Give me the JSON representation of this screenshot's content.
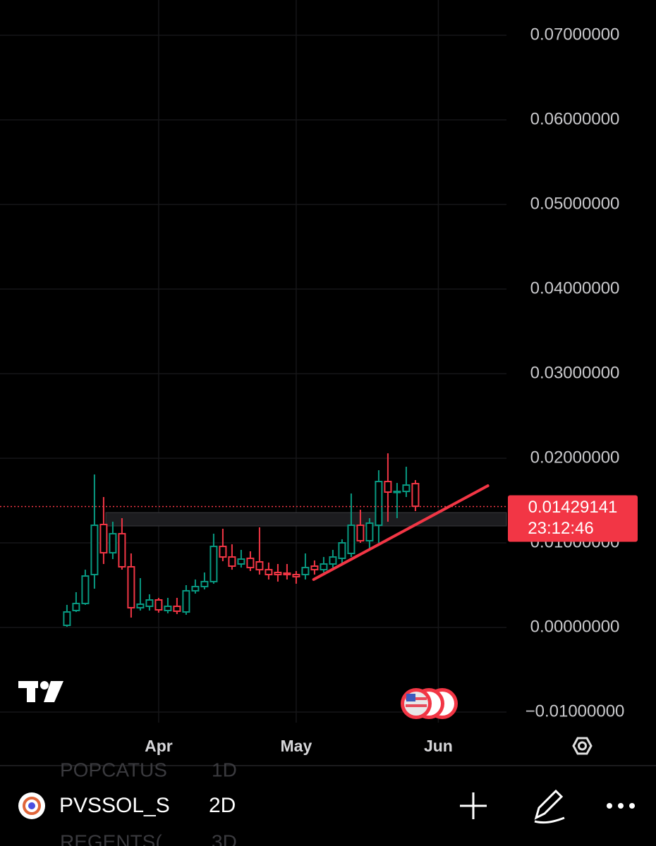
{
  "chart_data": {
    "type": "candlestick",
    "up_color": "#089981",
    "down_color": "#f23645",
    "open": [
      0.00025,
      0.002,
      0.00283,
      0.00625,
      0.01217,
      0.00883,
      0.01108,
      0.00717,
      0.00233,
      0.0025,
      0.00325,
      0.002,
      0.0025,
      0.00183,
      0.00433,
      0.00483,
      0.00542,
      0.00958,
      0.00833,
      0.0075,
      0.00817,
      0.00775,
      0.00683,
      0.0065,
      0.00642,
      0.00625,
      0.00625,
      0.00725,
      0.00683,
      0.0075,
      0.00817,
      0.00875,
      0.01208,
      0.01025,
      0.01208,
      0.01725,
      0.016,
      0.01608,
      0.017
    ],
    "high": [
      0.00267,
      0.00417,
      0.00683,
      0.01808,
      0.01542,
      0.0125,
      0.01292,
      0.00875,
      0.00583,
      0.00392,
      0.0035,
      0.0035,
      0.0035,
      0.005,
      0.00567,
      0.0065,
      0.01108,
      0.01167,
      0.00983,
      0.00917,
      0.009,
      0.01183,
      0.00767,
      0.0075,
      0.0075,
      0.00667,
      0.00875,
      0.00792,
      0.00833,
      0.00917,
      0.01042,
      0.01583,
      0.01392,
      0.01292,
      0.01858,
      0.02058,
      0.01708,
      0.019,
      0.01742
    ],
    "low": [
      8e-05,
      0.00183,
      0.00267,
      0.00458,
      0.0075,
      0.00808,
      0.00683,
      0.00117,
      0.002,
      0.002,
      0.00175,
      0.00167,
      0.00158,
      0.0015,
      0.004,
      0.0045,
      0.00517,
      0.00783,
      0.00683,
      0.00708,
      0.00667,
      0.00625,
      0.00567,
      0.00542,
      0.00567,
      0.00517,
      0.00567,
      0.00625,
      0.0065,
      0.00708,
      0.0075,
      0.00833,
      0.01,
      0.00917,
      0.01,
      0.0125,
      0.01292,
      0.01542,
      0.01375
    ],
    "close": [
      0.00183,
      0.00283,
      0.00608,
      0.01208,
      0.00883,
      0.01108,
      0.00717,
      0.00233,
      0.00275,
      0.00325,
      0.00208,
      0.0025,
      0.00192,
      0.00433,
      0.00483,
      0.00542,
      0.00958,
      0.00833,
      0.00725,
      0.00808,
      0.00708,
      0.00683,
      0.00625,
      0.00625,
      0.00625,
      0.006,
      0.00708,
      0.00683,
      0.0075,
      0.00833,
      0.01,
      0.01208,
      0.01025,
      0.01233,
      0.01725,
      0.016,
      0.01608,
      0.01683,
      0.01433
    ],
    "xlim": [
      -7.3,
      47.93
    ],
    "xticks": [
      {
        "value": 10,
        "label": "Apr"
      },
      {
        "value": 25,
        "label": "May"
      },
      {
        "value": 40.5,
        "label": "Jun"
      }
    ],
    "ylim": [
      -0.01125,
      0.07417
    ],
    "yticks": [
      {
        "value": 0.07,
        "label": "0.07000000"
      },
      {
        "value": 0.06,
        "label": "0.06000000"
      },
      {
        "value": 0.05,
        "label": "0.05000000"
      },
      {
        "value": 0.04,
        "label": "0.04000000"
      },
      {
        "value": 0.03,
        "label": "0.03000000"
      },
      {
        "value": 0.02,
        "label": "0.02000000"
      },
      {
        "value": 0.01,
        "label": "0.01000000"
      },
      {
        "value": 0,
        "label": "0.00000000"
      },
      {
        "value": -0.01,
        "label": "−0.01000000"
      }
    ],
    "grid": true,
    "last_price": {
      "value": 0.01429141,
      "label": "0.01429141",
      "countdown": "23:12:46",
      "color": "#f23645"
    },
    "zone": {
      "from": 0.012,
      "to": 0.01358
    },
    "trendline": {
      "x": [
        26.9,
        45.9
      ],
      "y": [
        0.00567,
        0.01675
      ],
      "color": "#f23645"
    }
  },
  "toolbar": {
    "symbol": "PVSSOL_S",
    "interval": "2D",
    "above": [
      "POPCATUS",
      "1D"
    ],
    "below": [
      "REGENTS(",
      "3D"
    ]
  }
}
